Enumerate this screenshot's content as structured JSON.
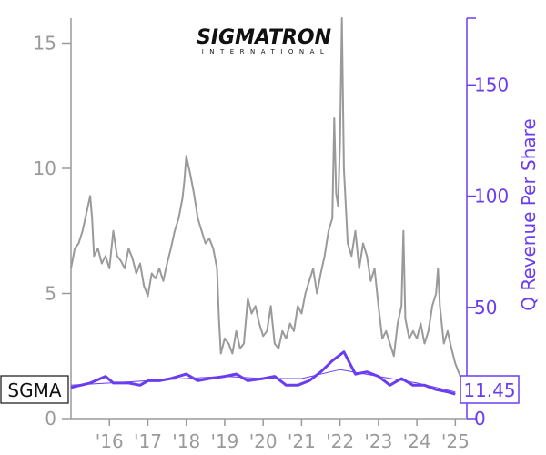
{
  "logo": {
    "name": "SIGMATRON",
    "subtitle": "INTERNATIONAL"
  },
  "ticker": "SGMA",
  "last_value_label": "11.45",
  "colors": {
    "price": "#9a9a9a",
    "revenue": "#6a3df0",
    "revenue_trend": "#6a3df0"
  },
  "chart_data": {
    "type": "line",
    "xlabel": "",
    "ylabel_left": "",
    "ylabel_right": "Q Revenue Per Share",
    "x_range": [
      2015.0,
      2025.3
    ],
    "ylim_left": [
      0,
      16
    ],
    "ylim_right": [
      0,
      180
    ],
    "left_ticks": [
      "0",
      "5",
      "10",
      "15"
    ],
    "right_ticks": [
      "0",
      "50",
      "100",
      "150"
    ],
    "x_ticks": [
      "'16",
      "'17",
      "'18",
      "'19",
      "'20",
      "'21",
      "'22",
      "'23",
      "'24",
      "'25"
    ],
    "x_tick_years": [
      2016,
      2017,
      2018,
      2019,
      2020,
      2021,
      2022,
      2023,
      2024,
      2025
    ],
    "grid": false,
    "series": [
      {
        "axis": "left",
        "x": [
          2015.0,
          2015.1,
          2015.2,
          2015.3,
          2015.4,
          2015.5,
          2015.55,
          2015.6,
          2015.7,
          2015.8,
          2015.9,
          2016.0,
          2016.1,
          2016.2,
          2016.3,
          2016.4,
          2016.5,
          2016.6,
          2016.7,
          2016.8,
          2016.9,
          2017.0,
          2017.1,
          2017.2,
          2017.3,
          2017.4,
          2017.5,
          2017.6,
          2017.7,
          2017.8,
          2017.9,
          2017.95,
          2018.0,
          2018.1,
          2018.2,
          2018.3,
          2018.4,
          2018.5,
          2018.6,
          2018.7,
          2018.8,
          2018.85,
          2018.9,
          2019.0,
          2019.1,
          2019.2,
          2019.3,
          2019.4,
          2019.5,
          2019.6,
          2019.7,
          2019.8,
          2019.9,
          2020.0,
          2020.1,
          2020.2,
          2020.3,
          2020.4,
          2020.5,
          2020.6,
          2020.7,
          2020.8,
          2020.9,
          2021.0,
          2021.1,
          2021.2,
          2021.3,
          2021.4,
          2021.5,
          2021.6,
          2021.7,
          2021.8,
          2021.85,
          2021.9,
          2021.95,
          2022.0,
          2022.05,
          2022.1,
          2022.2,
          2022.3,
          2022.4,
          2022.5,
          2022.6,
          2022.7,
          2022.8,
          2022.9,
          2023.0,
          2023.1,
          2023.2,
          2023.3,
          2023.4,
          2023.5,
          2023.6,
          2023.65,
          2023.7,
          2023.8,
          2023.9,
          2024.0,
          2024.1,
          2024.2,
          2024.3,
          2024.4,
          2024.5,
          2024.55,
          2024.6,
          2024.7,
          2024.8,
          2024.9,
          2025.0,
          2025.1,
          2025.2
        ],
        "values": [
          6.0,
          6.8,
          7.0,
          7.5,
          8.2,
          8.9,
          8.0,
          6.5,
          6.8,
          6.2,
          6.5,
          6.0,
          7.5,
          6.5,
          6.3,
          6.0,
          6.8,
          6.4,
          5.8,
          6.2,
          5.3,
          4.9,
          5.8,
          5.6,
          6.0,
          5.5,
          6.2,
          6.8,
          7.5,
          8.0,
          8.8,
          9.5,
          10.5,
          9.8,
          9.0,
          8.0,
          7.5,
          7.0,
          7.2,
          6.8,
          6.0,
          4.0,
          2.6,
          3.2,
          3.0,
          2.6,
          3.5,
          2.8,
          3.0,
          4.8,
          4.2,
          4.5,
          3.8,
          3.3,
          3.5,
          4.5,
          3.0,
          2.8,
          3.5,
          3.2,
          3.8,
          3.5,
          4.5,
          4.2,
          5.0,
          5.5,
          6.0,
          5.0,
          5.8,
          6.5,
          7.5,
          8.0,
          12.0,
          9.0,
          8.5,
          11.0,
          16.0,
          10.0,
          7.0,
          6.5,
          7.5,
          6.0,
          7.0,
          6.5,
          5.5,
          6.0,
          4.5,
          3.2,
          3.5,
          3.0,
          2.5,
          3.8,
          4.5,
          7.5,
          4.0,
          3.2,
          3.5,
          3.2,
          3.8,
          3.0,
          3.5,
          4.5,
          5.0,
          6.0,
          4.5,
          3.0,
          3.5,
          2.8,
          2.2,
          1.8,
          1.4
        ]
      },
      {
        "axis": "right",
        "name": "",
        "x": [
          2015.0,
          2015.5,
          2015.9,
          2016.1,
          2016.5,
          2016.8,
          2017.0,
          2017.3,
          2017.6,
          2018.0,
          2018.3,
          2018.6,
          2019.0,
          2019.3,
          2019.6,
          2020.0,
          2020.3,
          2020.6,
          2020.9,
          2021.2,
          2021.5,
          2021.8,
          2022.1,
          2022.4,
          2022.7,
          2023.0,
          2023.3,
          2023.6,
          2023.9,
          2024.2,
          2024.5,
          2024.8,
          2025.0
        ],
        "values": [
          14,
          16,
          19,
          16,
          16,
          15,
          17,
          17,
          18,
          20,
          17,
          18,
          19,
          20,
          17,
          18,
          19,
          15,
          15,
          17,
          21,
          26,
          30,
          20,
          21,
          19,
          15,
          18,
          15,
          15,
          13,
          12,
          11
        ]
      },
      {
        "axis": "right",
        "name": "",
        "x": [
          2015.0,
          2016.0,
          2017.0,
          2018.0,
          2019.0,
          2020.0,
          2021.0,
          2022.0,
          2023.0,
          2024.0,
          2025.0
        ],
        "values": [
          15,
          16,
          17,
          18,
          19,
          18,
          18,
          22,
          19,
          16,
          12
        ]
      }
    ]
  }
}
